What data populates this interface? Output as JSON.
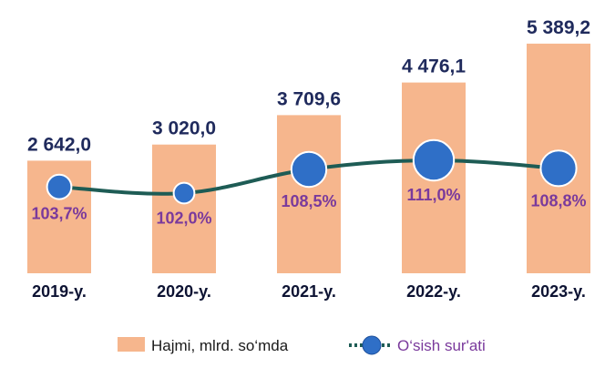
{
  "chart_data": {
    "type": "bar",
    "categories": [
      "2019-y.",
      "2020-y.",
      "2021-y.",
      "2022-y.",
      "2023-y."
    ],
    "series": [
      {
        "name": "Hajmi, mlrd. so‘mda",
        "type": "bar",
        "values": [
          2642.0,
          3020.0,
          3709.6,
          4476.1,
          5389.2
        ],
        "labels": [
          "2 642,0",
          "3 020,0",
          "3 709,6",
          "4 476,1",
          "5 389,2"
        ],
        "color": "#f6b68d"
      },
      {
        "name": "O‘sish sur'ati",
        "type": "line",
        "values": [
          103.7,
          102.0,
          108.5,
          111.0,
          108.8
        ],
        "labels": [
          "103,7%",
          "102,0%",
          "108,5%",
          "111,0%",
          "108,8%"
        ],
        "line_color": "#1e5c55",
        "marker_color": "#2f6fc7"
      }
    ],
    "ylim": [
      0,
      5600
    ],
    "grid": false,
    "legend_position": "bottom"
  }
}
